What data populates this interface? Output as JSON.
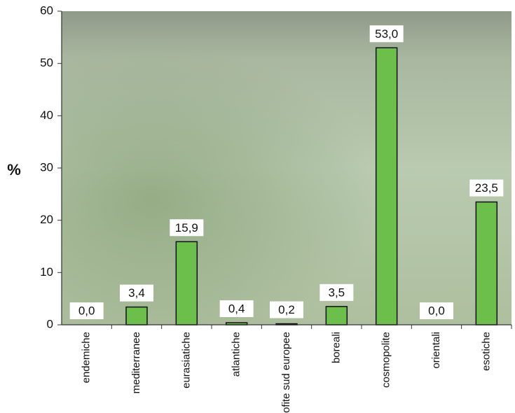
{
  "chart_data": {
    "type": "bar",
    "y_label": "%",
    "categories": [
      "endemiche",
      "mediterranee",
      "eurasiatiche",
      "atlantiche",
      "orofite sud europee",
      "boreali",
      "cosmopolite",
      "orientali",
      "esotiche"
    ],
    "values": [
      0.0,
      3.4,
      15.9,
      0.4,
      0.2,
      3.5,
      53.0,
      0.0,
      23.5
    ],
    "value_labels": [
      "0,0",
      "3,4",
      "15,9",
      "0,4",
      "0,2",
      "3,5",
      "53,0",
      "0,0",
      "23,5"
    ],
    "color": "#6cbf4a",
    "ylim": [
      0,
      60
    ],
    "yticks": [
      0,
      10,
      20,
      30,
      40,
      50,
      60
    ],
    "grid": false
  }
}
